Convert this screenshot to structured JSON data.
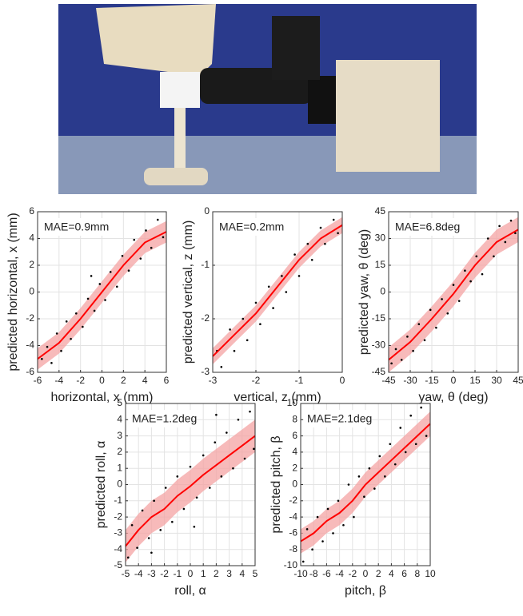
{
  "chart_data": [
    {
      "type": "scatter",
      "annotation": "MAE=0.9mm",
      "xlabel": "horizontal, x (mm)",
      "ylabel": "predicted horizontal, x (mm)",
      "xlim": [
        -6,
        6
      ],
      "ylim": [
        -6,
        6
      ],
      "xticks": [
        -6,
        -4,
        -2,
        0,
        2,
        4,
        6
      ],
      "yticks": [
        -6,
        -4,
        -2,
        0,
        2,
        4,
        6
      ],
      "grid": true,
      "point_color": "#000000",
      "line_color": "#ff0000",
      "band_color": "#f4a3a3",
      "points": {
        "x": [
          -5.6,
          -5.1,
          -4.7,
          -4.2,
          -3.8,
          -3.3,
          -2.9,
          -2.4,
          -1.8,
          -1.3,
          -0.7,
          -0.2,
          0.3,
          0.8,
          1.4,
          1.9,
          2.5,
          3.0,
          3.6,
          4.1,
          4.6,
          5.2,
          5.7,
          -1.0
        ],
        "y": [
          -5.0,
          -4.1,
          -5.3,
          -3.1,
          -4.4,
          -2.2,
          -3.5,
          -1.6,
          -2.6,
          -0.5,
          -1.4,
          0.6,
          -0.6,
          1.5,
          0.4,
          2.7,
          1.6,
          3.9,
          2.5,
          4.6,
          3.3,
          5.4,
          4.1,
          1.2
        ]
      },
      "trend": {
        "x": [
          -6,
          -4,
          -2,
          0,
          2,
          4,
          6
        ],
        "y": [
          -5,
          -3.8,
          -2,
          0,
          2,
          3.7,
          4.5
        ]
      },
      "band": {
        "lower": [
          -5.8,
          -4.6,
          -2.8,
          -0.8,
          1.2,
          2.9,
          3.7
        ],
        "upper": [
          -4.2,
          -3.0,
          -1.2,
          0.8,
          2.8,
          4.5,
          5.3
        ]
      }
    },
    {
      "type": "scatter",
      "annotation": "MAE=0.2mm",
      "xlabel": "vertical, z (mm)",
      "ylabel": "predicted vertical, z (mm)",
      "xlim": [
        -3,
        0
      ],
      "ylim": [
        -3,
        0
      ],
      "xticks": [
        -3,
        -2,
        -1,
        0
      ],
      "yticks": [
        -3,
        -2,
        -1,
        0
      ],
      "grid": true,
      "point_color": "#000000",
      "line_color": "#ff0000",
      "band_color": "#f4a3a3",
      "points": {
        "x": [
          -2.9,
          -2.8,
          -2.6,
          -2.5,
          -2.3,
          -2.2,
          -2.0,
          -1.9,
          -1.7,
          -1.6,
          -1.4,
          -1.3,
          -1.1,
          -1.0,
          -0.8,
          -0.7,
          -0.5,
          -0.4,
          -0.2,
          -0.1
        ],
        "y": [
          -2.6,
          -2.9,
          -2.2,
          -2.6,
          -2.0,
          -2.4,
          -1.7,
          -2.1,
          -1.4,
          -1.8,
          -1.2,
          -1.5,
          -0.8,
          -1.2,
          -0.6,
          -0.9,
          -0.3,
          -0.6,
          -0.15,
          -0.4
        ]
      },
      "trend": {
        "x": [
          -3,
          -2.5,
          -2,
          -1.5,
          -1,
          -0.5,
          0
        ],
        "y": [
          -2.7,
          -2.3,
          -1.9,
          -1.4,
          -0.9,
          -0.5,
          -0.25
        ]
      },
      "band": {
        "lower": [
          -2.85,
          -2.45,
          -2.05,
          -1.55,
          -1.05,
          -0.65,
          -0.4
        ],
        "upper": [
          -2.55,
          -2.15,
          -1.75,
          -1.25,
          -0.75,
          -0.35,
          -0.1
        ]
      }
    },
    {
      "type": "scatter",
      "annotation": "MAE=6.8deg",
      "xlabel": "yaw, θ (deg)",
      "ylabel": "predicted yaw, θ (deg)",
      "xlim": [
        -45,
        45
      ],
      "ylim": [
        -45,
        45
      ],
      "xticks": [
        -45,
        -30,
        -15,
        0,
        15,
        30,
        45
      ],
      "yticks": [
        -45,
        -30,
        -15,
        0,
        15,
        30,
        45
      ],
      "grid": true,
      "point_color": "#000000",
      "line_color": "#ff0000",
      "band_color": "#f4a3a3",
      "points": {
        "x": [
          -43,
          -40,
          -36,
          -32,
          -28,
          -24,
          -20,
          -16,
          -12,
          -8,
          -4,
          0,
          4,
          8,
          12,
          16,
          20,
          24,
          28,
          32,
          36,
          40,
          43
        ],
        "y": [
          -40,
          -32,
          -38,
          -25,
          -33,
          -18,
          -27,
          -10,
          -20,
          -4,
          -12,
          4,
          -5,
          12,
          6,
          20,
          10,
          30,
          20,
          37,
          28,
          40,
          33
        ]
      },
      "trend": {
        "x": [
          -45,
          -30,
          -15,
          0,
          15,
          30,
          45
        ],
        "y": [
          -38,
          -28,
          -15,
          -1,
          15,
          28,
          35
        ]
      },
      "band": {
        "lower": [
          -45,
          -35,
          -22,
          -8,
          8,
          21,
          28
        ],
        "upper": [
          -31,
          -21,
          -8,
          6,
          22,
          35,
          42
        ]
      }
    },
    {
      "type": "scatter",
      "annotation": "MAE=1.2deg",
      "xlabel": "roll, α",
      "ylabel": "predicted roll, α",
      "xlim": [
        -5,
        5
      ],
      "ylim": [
        -5,
        5
      ],
      "xticks": [
        -5,
        -4,
        -3,
        -2,
        -1,
        0,
        1,
        2,
        3,
        4,
        5
      ],
      "yticks": [
        -5,
        -4,
        -3,
        -2,
        -1,
        0,
        1,
        2,
        3,
        4,
        5
      ],
      "grid": true,
      "point_color": "#000000",
      "line_color": "#ff0000",
      "band_color": "#f4a3a3",
      "points": {
        "x": [
          -4.8,
          -4.5,
          -4.1,
          -3.7,
          -3.2,
          -2.8,
          -2.3,
          -1.9,
          -1.4,
          -1,
          -0.5,
          0,
          0.5,
          1,
          1.5,
          1.9,
          2.4,
          2.8,
          3.3,
          3.7,
          4.2,
          4.6,
          4.9,
          -3,
          2,
          0.3
        ],
        "y": [
          -4.5,
          -2.5,
          -3.9,
          -1.6,
          -3.3,
          -1.0,
          -2.8,
          -0.2,
          -2.3,
          0.5,
          -1.5,
          1.1,
          -0.8,
          1.8,
          -0.2,
          2.6,
          0.5,
          3.2,
          1.0,
          4.0,
          1.6,
          4.5,
          2.2,
          -4.2,
          4.3,
          -2.6
        ]
      },
      "trend": {
        "x": [
          -5,
          -4,
          -3,
          -2,
          -1,
          0,
          1,
          2,
          3,
          4,
          5
        ],
        "y": [
          -3.8,
          -2.8,
          -2,
          -1.5,
          -0.7,
          -0.1,
          0.6,
          1.2,
          1.8,
          2.4,
          3
        ]
      },
      "band": {
        "lower": [
          -4.8,
          -3.8,
          -3,
          -2.5,
          -1.7,
          -1.1,
          -0.4,
          0.2,
          0.8,
          1.4,
          2
        ],
        "upper": [
          -2.8,
          -1.8,
          -1,
          -0.5,
          0.3,
          0.9,
          1.6,
          2.2,
          2.8,
          3.4,
          4
        ]
      }
    },
    {
      "type": "scatter",
      "annotation": "MAE=2.1deg",
      "xlabel": "pitch, β",
      "ylabel": "predicted pitch, β",
      "xlim": [
        -10,
        10
      ],
      "ylim": [
        -10,
        10
      ],
      "xticks": [
        -10,
        -8,
        -6,
        -4,
        -2,
        0,
        2,
        4,
        6,
        8,
        10
      ],
      "yticks": [
        -10,
        -8,
        -6,
        -4,
        -2,
        0,
        2,
        4,
        6,
        8,
        10
      ],
      "grid": true,
      "point_color": "#000000",
      "line_color": "#ff0000",
      "band_color": "#f4a3a3",
      "points": {
        "x": [
          -9.6,
          -9,
          -8.2,
          -7.4,
          -6.6,
          -5.8,
          -5,
          -4.2,
          -3.4,
          -2.6,
          -1.8,
          -1,
          -0.2,
          0.6,
          1.4,
          2.2,
          3,
          3.8,
          4.6,
          5.4,
          6.2,
          7,
          7.8,
          8.6,
          9.4
        ],
        "y": [
          -9.5,
          -5.5,
          -8,
          -4,
          -7,
          -3,
          -6,
          -2,
          -5,
          0,
          -4,
          1,
          -1.5,
          2,
          -0.5,
          3.5,
          1,
          5,
          2.5,
          7,
          4,
          8.5,
          5,
          9.5,
          6
        ]
      },
      "trend": {
        "x": [
          -10,
          -8,
          -6,
          -4,
          -2,
          0,
          2,
          4,
          6,
          8,
          10
        ],
        "y": [
          -7,
          -6,
          -4.5,
          -3.5,
          -2,
          0,
          1.5,
          3,
          4.5,
          6,
          7.5
        ]
      },
      "band": {
        "lower": [
          -8.5,
          -7.5,
          -6,
          -5,
          -3.5,
          -1.5,
          0,
          1.5,
          3,
          4.5,
          6
        ],
        "upper": [
          -5.5,
          -4.5,
          -3,
          -2,
          -0.5,
          1.5,
          3,
          4.5,
          6,
          7.5,
          9
        ]
      }
    }
  ]
}
